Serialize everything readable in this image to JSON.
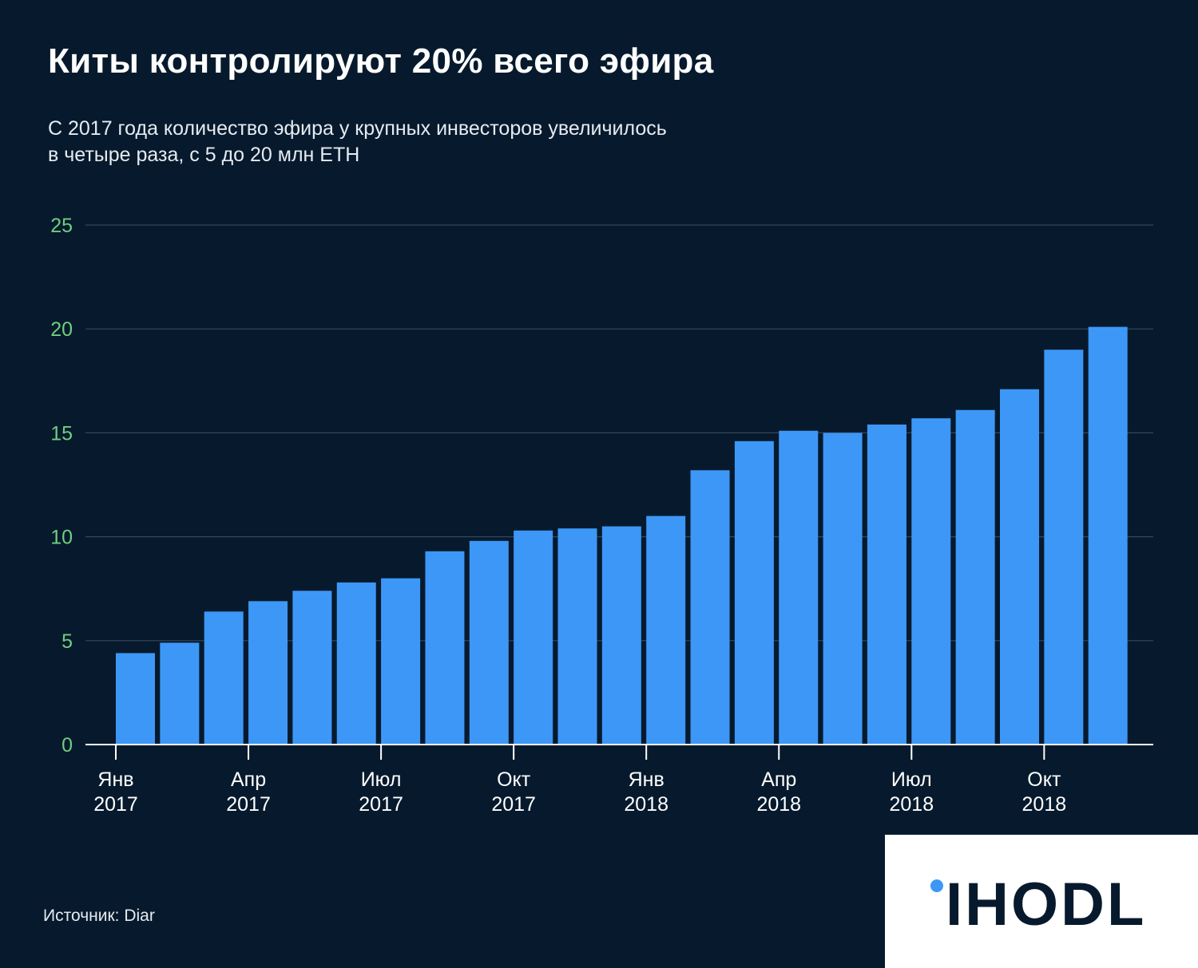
{
  "title": "Киты контролируют 20% всего эфира",
  "subtitle_lines": [
    "С 2017 года количество эфира у крупных инвесторов увеличилось",
    "в четыре раза, с 5 до 20 млн ETH"
  ],
  "source": "Источник: Diar",
  "logo_text": "IHODL",
  "colors": {
    "background": "#071a2d",
    "bar": "#3d97f6",
    "gridline": "#33475b",
    "y_tick_label": "#6fce7f",
    "axis": "#ffffff",
    "logo_dot": "#3d97f6"
  },
  "chart_data": {
    "type": "bar",
    "title": "Киты контролируют 20% всего эфира",
    "ylim": [
      0,
      25
    ],
    "y_ticks": [
      0,
      5,
      10,
      15,
      20,
      25
    ],
    "grid": true,
    "categories": [
      "2017-01",
      "2017-02",
      "2017-03",
      "2017-04",
      "2017-05",
      "2017-06",
      "2017-07",
      "2017-08",
      "2017-09",
      "2017-10",
      "2017-11",
      "2017-12",
      "2018-01",
      "2018-02",
      "2018-03",
      "2018-04",
      "2018-05",
      "2018-06",
      "2018-07",
      "2018-08",
      "2018-09",
      "2018-10",
      "2018-11"
    ],
    "values": [
      4.4,
      4.9,
      6.4,
      6.9,
      7.4,
      7.8,
      8.0,
      9.3,
      9.8,
      10.3,
      10.4,
      10.5,
      11.0,
      13.2,
      14.6,
      15.1,
      15.0,
      15.4,
      15.7,
      16.1,
      17.1,
      19.0,
      20.1
    ],
    "x_tick_labels": [
      {
        "index": 0,
        "month": "Янв",
        "year": "2017"
      },
      {
        "index": 3,
        "month": "Апр",
        "year": "2017"
      },
      {
        "index": 6,
        "month": "Июл",
        "year": "2017"
      },
      {
        "index": 9,
        "month": "Окт",
        "year": "2017"
      },
      {
        "index": 12,
        "month": "Янв",
        "year": "2018"
      },
      {
        "index": 15,
        "month": "Апр",
        "year": "2018"
      },
      {
        "index": 18,
        "month": "Июл",
        "year": "2018"
      },
      {
        "index": 21,
        "month": "Окт",
        "year": "2018"
      }
    ]
  }
}
